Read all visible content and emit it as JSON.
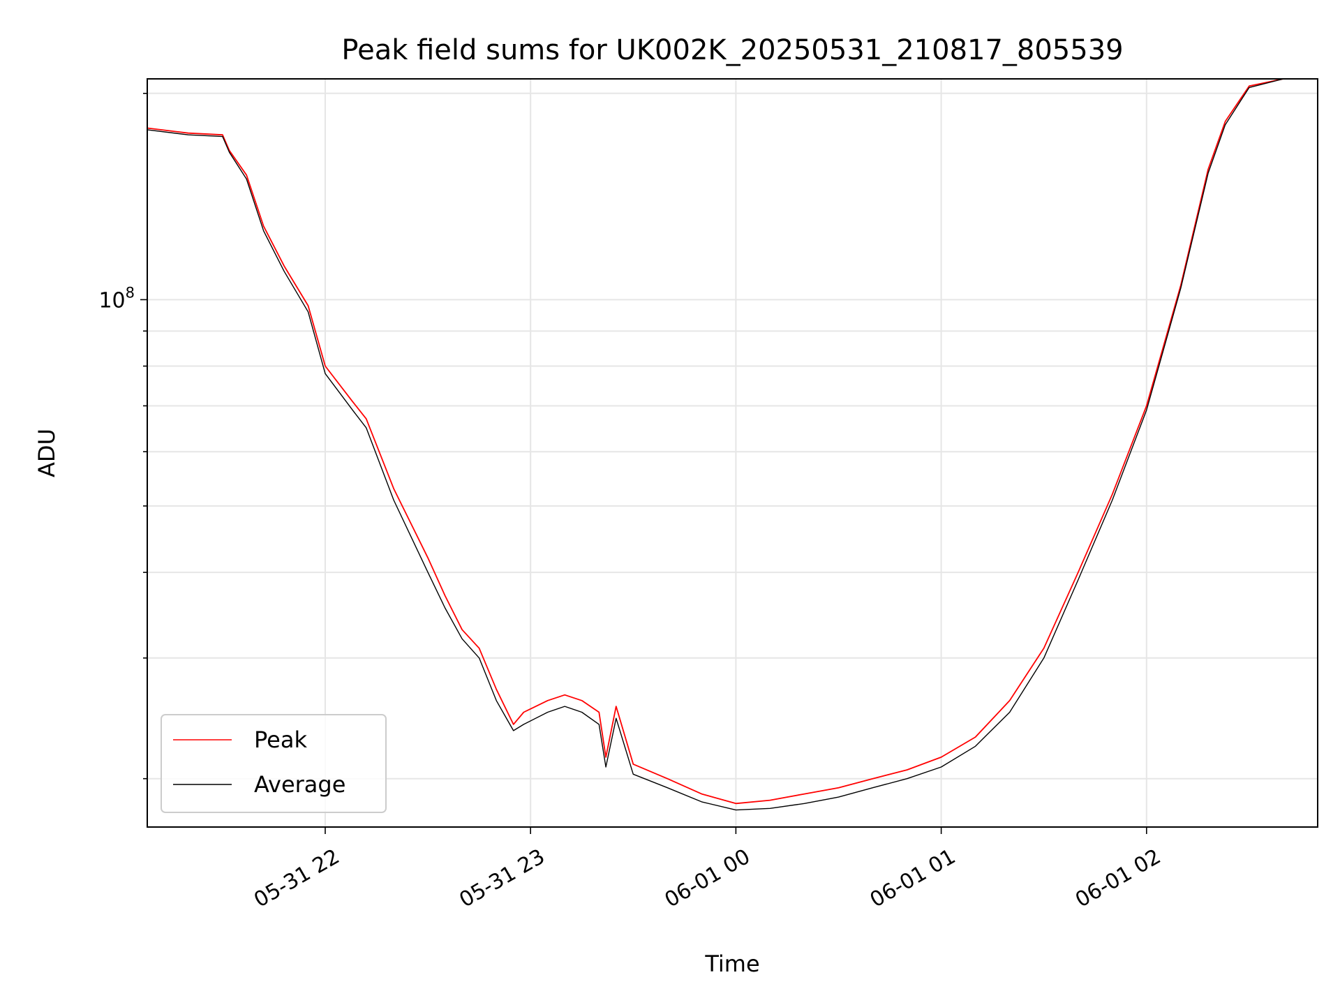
{
  "chart_data": {
    "type": "line",
    "title": "Peak field sums for UK002K_20250531_210817_805539",
    "xlabel": "Time",
    "ylabel": "ADU",
    "yscale": "log",
    "grid": true,
    "legend_position": "lower-left",
    "xlim": [
      "2025-05-31 21:08",
      "2025-06-01 02:50"
    ],
    "ylim": [
      17000000,
      210000000
    ],
    "x_ticks": [
      {
        "value": "2025-05-31 22:00",
        "label": "05-31 22"
      },
      {
        "value": "2025-05-31 23:00",
        "label": "05-31 23"
      },
      {
        "value": "2025-06-01 00:00",
        "label": "06-01 00"
      },
      {
        "value": "2025-06-01 01:00",
        "label": "06-01 01"
      },
      {
        "value": "2025-06-01 02:00",
        "label": "06-01 02"
      }
    ],
    "y_ticks": [
      {
        "value": 100000000,
        "base": "10",
        "exp": "8"
      }
    ],
    "y_minor_ticks": [
      20000000,
      30000000,
      40000000,
      50000000,
      60000000,
      70000000,
      80000000,
      90000000,
      200000000
    ],
    "series": [
      {
        "name": "Peak",
        "color": "#ff0000",
        "x": [
          "2025-05-31 21:08",
          "2025-05-31 21:20",
          "2025-05-31 21:30",
          "2025-05-31 21:32",
          "2025-05-31 21:37",
          "2025-05-31 21:42",
          "2025-05-31 21:48",
          "2025-05-31 21:55",
          "2025-05-31 22:00",
          "2025-05-31 22:08",
          "2025-05-31 22:12",
          "2025-05-31 22:20",
          "2025-05-31 22:30",
          "2025-05-31 22:35",
          "2025-05-31 22:40",
          "2025-05-31 22:45",
          "2025-05-31 22:50",
          "2025-05-31 22:55",
          "2025-05-31 22:58",
          "2025-05-31 23:05",
          "2025-05-31 23:10",
          "2025-05-31 23:15",
          "2025-05-31 23:20",
          "2025-05-31 23:22",
          "2025-05-31 23:25",
          "2025-05-31 23:30",
          "2025-05-31 23:40",
          "2025-05-31 23:50",
          "2025-06-01 00:00",
          "2025-06-01 00:10",
          "2025-06-01 00:20",
          "2025-06-01 00:30",
          "2025-06-01 00:40",
          "2025-06-01 00:50",
          "2025-06-01 01:00",
          "2025-06-01 01:10",
          "2025-06-01 01:20",
          "2025-06-01 01:30",
          "2025-06-01 01:40",
          "2025-06-01 01:50",
          "2025-06-01 02:00",
          "2025-06-01 02:10",
          "2025-06-01 02:18",
          "2025-06-01 02:23",
          "2025-06-01 02:30",
          "2025-06-01 02:40",
          "2025-06-01 02:50"
        ],
        "y": [
          178000000,
          175000000,
          174000000,
          165000000,
          152000000,
          128000000,
          112000000,
          98000000,
          80000000,
          71000000,
          67000000,
          53000000,
          42000000,
          37000000,
          33000000,
          31000000,
          27000000,
          24000000,
          25000000,
          26000000,
          26500000,
          26000000,
          25000000,
          21500000,
          25500000,
          21000000,
          20000000,
          19000000,
          18400000,
          18600000,
          19000000,
          19400000,
          20000000,
          20600000,
          21500000,
          23000000,
          26000000,
          31000000,
          40000000,
          52000000,
          70000000,
          105000000,
          155000000,
          182000000,
          205000000,
          210000000,
          210000000
        ]
      },
      {
        "name": "Average",
        "color": "#000000",
        "x": [
          "2025-05-31 21:08",
          "2025-05-31 21:20",
          "2025-05-31 21:30",
          "2025-05-31 21:32",
          "2025-05-31 21:37",
          "2025-05-31 21:42",
          "2025-05-31 21:48",
          "2025-05-31 21:55",
          "2025-05-31 22:00",
          "2025-05-31 22:08",
          "2025-05-31 22:12",
          "2025-05-31 22:20",
          "2025-05-31 22:30",
          "2025-05-31 22:35",
          "2025-05-31 22:40",
          "2025-05-31 22:45",
          "2025-05-31 22:50",
          "2025-05-31 22:55",
          "2025-05-31 22:58",
          "2025-05-31 23:05",
          "2025-05-31 23:10",
          "2025-05-31 23:15",
          "2025-05-31 23:20",
          "2025-05-31 23:22",
          "2025-05-31 23:25",
          "2025-05-31 23:30",
          "2025-05-31 23:40",
          "2025-05-31 23:50",
          "2025-06-01 00:00",
          "2025-06-01 00:10",
          "2025-06-01 00:20",
          "2025-06-01 00:30",
          "2025-06-01 00:40",
          "2025-06-01 00:50",
          "2025-06-01 01:00",
          "2025-06-01 01:10",
          "2025-06-01 01:20",
          "2025-06-01 01:30",
          "2025-06-01 01:40",
          "2025-06-01 01:50",
          "2025-06-01 02:00",
          "2025-06-01 02:10",
          "2025-06-01 02:18",
          "2025-06-01 02:23",
          "2025-06-01 02:30",
          "2025-06-01 02:40",
          "2025-06-01 02:50"
        ],
        "y": [
          177000000,
          174000000,
          173000000,
          164000000,
          150000000,
          126000000,
          110000000,
          96000000,
          78000000,
          69000000,
          65000000,
          51000000,
          40000000,
          35500000,
          32000000,
          30000000,
          26000000,
          23500000,
          24000000,
          25000000,
          25500000,
          25000000,
          24000000,
          20800000,
          24500000,
          20300000,
          19400000,
          18500000,
          18000000,
          18100000,
          18400000,
          18800000,
          19400000,
          20000000,
          20800000,
          22300000,
          25000000,
          30000000,
          39000000,
          51000000,
          69000000,
          104000000,
          153000000,
          180000000,
          204000000,
          210000000,
          210000000
        ]
      }
    ]
  }
}
